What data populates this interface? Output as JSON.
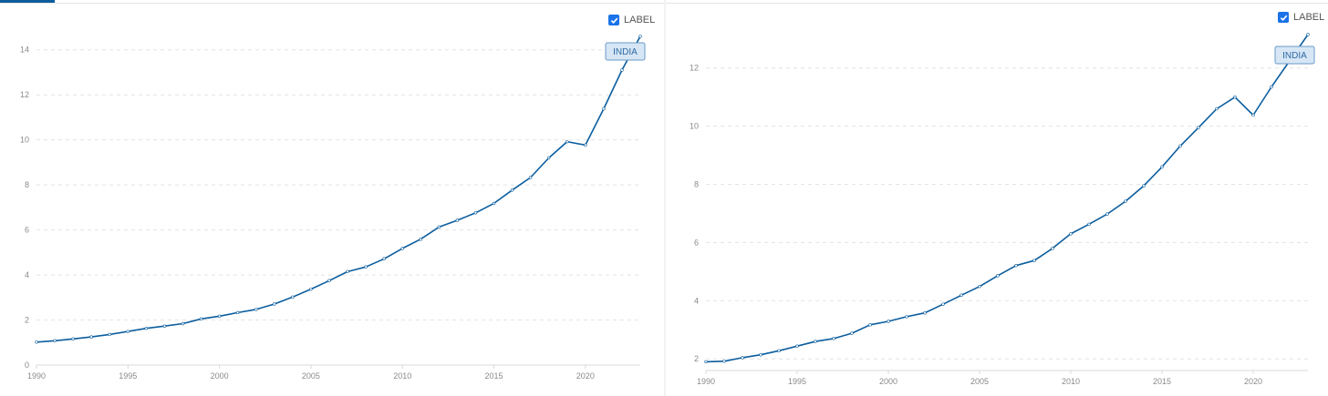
{
  "label_toggle": {
    "text": "LABEL",
    "checked": true
  },
  "colors": {
    "series": "#0b5d9e",
    "tag_fill": "#d6e6f5",
    "tag_stroke": "#6b9ac9",
    "checkbox": "#1a73e8"
  },
  "chart_data": [
    {
      "type": "line",
      "title": "",
      "xlabel": "",
      "ylabel": "",
      "xlim": [
        1990,
        2023
      ],
      "ylim": [
        0,
        15
      ],
      "x_ticks": [
        1990,
        1995,
        2000,
        2005,
        2010,
        2015,
        2020
      ],
      "y_ticks": [
        0,
        2,
        4,
        6,
        8,
        10,
        12,
        14
      ],
      "grid": true,
      "legend": "none",
      "series": [
        {
          "tag": "INDIA",
          "x": [
            1990,
            1991,
            1992,
            1993,
            1994,
            1995,
            1996,
            1997,
            1998,
            1999,
            2000,
            2001,
            2002,
            2003,
            2004,
            2005,
            2006,
            2007,
            2008,
            2009,
            2010,
            2011,
            2012,
            2013,
            2014,
            2015,
            2016,
            2017,
            2018,
            2019,
            2020,
            2021,
            2022,
            2023
          ],
          "y": [
            1.02,
            1.08,
            1.16,
            1.25,
            1.36,
            1.49,
            1.63,
            1.73,
            1.84,
            2.05,
            2.17,
            2.33,
            2.47,
            2.71,
            3.02,
            3.37,
            3.75,
            4.15,
            4.36,
            4.72,
            5.18,
            5.59,
            6.13,
            6.43,
            6.76,
            7.18,
            7.77,
            8.33,
            9.2,
            9.92,
            9.77,
            11.38,
            13.1,
            14.6
          ]
        }
      ]
    },
    {
      "type": "line",
      "title": "",
      "xlabel": "",
      "ylabel": "",
      "xlim": [
        1990,
        2023
      ],
      "ylim": [
        1.6,
        13.4
      ],
      "x_ticks": [
        1990,
        1995,
        2000,
        2005,
        2010,
        2015,
        2020
      ],
      "y_ticks": [
        2,
        4,
        6,
        8,
        10,
        12
      ],
      "grid": true,
      "legend": "none",
      "series": [
        {
          "tag": "INDIA",
          "x": [
            1990,
            1991,
            1992,
            1993,
            1994,
            1995,
            1996,
            1997,
            1998,
            1999,
            2000,
            2001,
            2002,
            2003,
            2004,
            2005,
            2006,
            2007,
            2008,
            2009,
            2010,
            2011,
            2012,
            2013,
            2014,
            2015,
            2016,
            2017,
            2018,
            2019,
            2020,
            2021,
            2022,
            2023
          ],
          "y": [
            1.9,
            1.92,
            2.04,
            2.14,
            2.28,
            2.44,
            2.6,
            2.7,
            2.88,
            3.17,
            3.29,
            3.45,
            3.58,
            3.88,
            4.19,
            4.49,
            4.86,
            5.21,
            5.38,
            5.8,
            6.3,
            6.63,
            6.98,
            7.42,
            7.95,
            8.6,
            9.32,
            9.95,
            10.6,
            11.0,
            10.38,
            11.35,
            12.25,
            13.15
          ]
        }
      ]
    }
  ]
}
